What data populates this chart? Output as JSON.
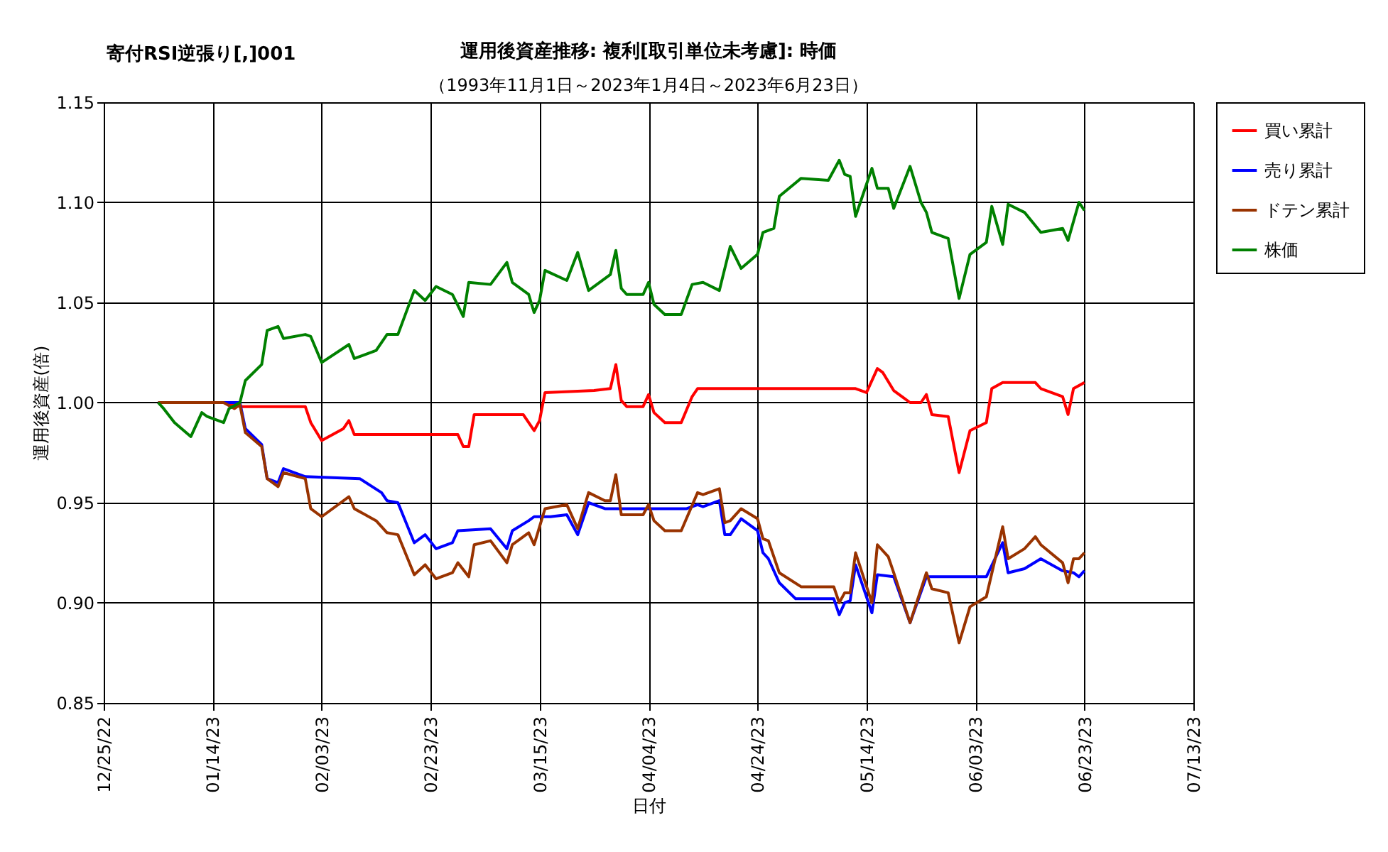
{
  "chart_data": {
    "type": "line",
    "title": "運用後資産推移: 複利[取引単位未考慮]: 時価",
    "subtitle": "（1993年11月1日～2023年1月4日～2023年6月23日）",
    "annotations": [
      "寄付RSI逆張り[,]001"
    ],
    "xlabel": "日付",
    "ylabel": "運用後資産(倍)",
    "xlim": [
      "2022-12-25",
      "2023-07-13"
    ],
    "xticks": [
      {
        "value": "2022-12-25",
        "label": "12/25/22"
      },
      {
        "value": "2023-01-14",
        "label": "01/14/23"
      },
      {
        "value": "2023-02-03",
        "label": "02/03/23"
      },
      {
        "value": "2023-02-23",
        "label": "02/23/23"
      },
      {
        "value": "2023-03-15",
        "label": "03/15/23"
      },
      {
        "value": "2023-04-04",
        "label": "04/04/23"
      },
      {
        "value": "2023-04-24",
        "label": "04/24/23"
      },
      {
        "value": "2023-05-14",
        "label": "05/14/23"
      },
      {
        "value": "2023-06-03",
        "label": "06/03/23"
      },
      {
        "value": "2023-06-23",
        "label": "06/23/23"
      },
      {
        "value": "2023-07-13",
        "label": "07/13/23"
      }
    ],
    "ylim": [
      0.85,
      1.15
    ],
    "yticks": [
      0.85,
      {
        "value": 0.9,
        "label": "0.90"
      },
      0.95,
      {
        "value": 1.0,
        "label": "1.00"
      },
      1.05,
      {
        "value": 1.1,
        "label": "1.10"
      },
      1.15
    ],
    "grid": true,
    "legend": "top right",
    "line_style": "solid",
    "series": [
      {
        "name": "買い累計",
        "color": "#ff0000",
        "x": [
          "2023-01-04",
          "2023-01-16",
          "2023-01-19",
          "2023-01-31",
          "2023-02-01",
          "2023-02-03",
          "2023-02-07",
          "2023-02-08",
          "2023-02-09",
          "2023-02-28",
          "2023-03-01",
          "2023-03-02",
          "2023-03-03",
          "2023-03-12",
          "2023-03-14",
          "2023-03-15",
          "2023-03-16",
          "2023-03-25",
          "2023-03-28",
          "2023-03-29",
          "2023-03-30",
          "2023-03-31",
          "2023-04-03",
          "2023-04-04",
          "2023-04-05",
          "2023-04-07",
          "2023-04-10",
          "2023-04-12",
          "2023-04-13",
          "2023-05-12",
          "2023-05-14",
          "2023-05-16",
          "2023-05-17",
          "2023-05-19",
          "2023-05-22",
          "2023-05-24",
          "2023-05-25",
          "2023-05-26",
          "2023-05-29",
          "2023-05-31",
          "2023-06-02",
          "2023-06-05",
          "2023-06-06",
          "2023-06-08",
          "2023-06-14",
          "2023-06-15",
          "2023-06-19",
          "2023-06-20",
          "2023-06-21",
          "2023-06-23"
        ],
        "values": [
          1.0,
          1.0,
          0.998,
          0.998,
          0.99,
          0.981,
          0.987,
          0.991,
          0.984,
          0.984,
          0.978,
          0.978,
          0.994,
          0.994,
          0.986,
          0.991,
          1.005,
          1.006,
          1.007,
          1.019,
          1.001,
          0.998,
          0.998,
          1.004,
          0.995,
          0.99,
          0.99,
          1.003,
          1.007,
          1.007,
          1.005,
          1.017,
          1.015,
          1.006,
          1.0,
          1.0,
          1.004,
          0.994,
          0.993,
          0.965,
          0.986,
          0.99,
          1.007,
          1.01,
          1.01,
          1.007,
          1.003,
          0.994,
          1.007,
          1.01
        ]
      },
      {
        "name": "売り累計",
        "color": "#0000ff",
        "x": [
          "2023-01-04",
          "2023-01-16",
          "2023-01-19",
          "2023-01-20",
          "2023-01-23",
          "2023-01-24",
          "2023-01-26",
          "2023-01-27",
          "2023-01-31",
          "2023-02-10",
          "2023-02-14",
          "2023-02-15",
          "2023-02-17",
          "2023-02-20",
          "2023-02-22",
          "2023-02-24",
          "2023-02-27",
          "2023-02-28",
          "2023-03-06",
          "2023-03-09",
          "2023-03-10",
          "2023-03-13",
          "2023-03-14",
          "2023-03-17",
          "2023-03-20",
          "2023-03-22",
          "2023-03-24",
          "2023-03-27",
          "2023-04-11",
          "2023-04-13",
          "2023-04-14",
          "2023-04-17",
          "2023-04-18",
          "2023-04-19",
          "2023-04-21",
          "2023-04-24",
          "2023-04-25",
          "2023-04-26",
          "2023-04-28",
          "2023-05-01",
          "2023-05-08",
          "2023-05-09",
          "2023-05-10",
          "2023-05-11",
          "2023-05-12",
          "2023-05-15",
          "2023-05-16",
          "2023-05-19",
          "2023-05-22",
          "2023-05-25",
          "2023-06-05",
          "2023-06-08",
          "2023-06-09",
          "2023-06-12",
          "2023-06-15",
          "2023-06-19",
          "2023-06-21",
          "2023-06-22",
          "2023-06-23"
        ],
        "values": [
          1.0,
          1.0,
          1.0,
          0.987,
          0.979,
          0.962,
          0.96,
          0.967,
          0.963,
          0.962,
          0.955,
          0.951,
          0.95,
          0.93,
          0.934,
          0.927,
          0.93,
          0.936,
          0.937,
          0.927,
          0.936,
          0.941,
          0.943,
          0.943,
          0.944,
          0.934,
          0.95,
          0.947,
          0.947,
          0.949,
          0.948,
          0.951,
          0.934,
          0.934,
          0.942,
          0.936,
          0.925,
          0.922,
          0.91,
          0.902,
          0.902,
          0.894,
          0.9,
          0.901,
          0.919,
          0.895,
          0.914,
          0.913,
          0.89,
          0.913,
          0.913,
          0.93,
          0.915,
          0.917,
          0.922,
          0.916,
          0.915,
          0.913,
          0.916
        ]
      },
      {
        "name": "ドテン累計",
        "color": "#993300",
        "x": [
          "2023-01-04",
          "2023-01-16",
          "2023-01-18",
          "2023-01-19",
          "2023-01-20",
          "2023-01-23",
          "2023-01-24",
          "2023-01-26",
          "2023-01-27",
          "2023-01-31",
          "2023-02-01",
          "2023-02-03",
          "2023-02-08",
          "2023-02-09",
          "2023-02-13",
          "2023-02-15",
          "2023-02-17",
          "2023-02-20",
          "2023-02-22",
          "2023-02-24",
          "2023-02-27",
          "2023-02-28",
          "2023-03-02",
          "2023-03-03",
          "2023-03-06",
          "2023-03-09",
          "2023-03-10",
          "2023-03-13",
          "2023-03-14",
          "2023-03-16",
          "2023-03-20",
          "2023-03-22",
          "2023-03-24",
          "2023-03-27",
          "2023-03-28",
          "2023-03-29",
          "2023-03-30",
          "2023-04-03",
          "2023-04-04",
          "2023-04-05",
          "2023-04-07",
          "2023-04-10",
          "2023-04-13",
          "2023-04-14",
          "2023-04-17",
          "2023-04-18",
          "2023-04-19",
          "2023-04-21",
          "2023-04-24",
          "2023-04-25",
          "2023-04-26",
          "2023-04-28",
          "2023-05-02",
          "2023-05-08",
          "2023-05-09",
          "2023-05-10",
          "2023-05-11",
          "2023-05-12",
          "2023-05-15",
          "2023-05-16",
          "2023-05-18",
          "2023-05-19",
          "2023-05-22",
          "2023-05-25",
          "2023-05-26",
          "2023-05-29",
          "2023-05-31",
          "2023-06-02",
          "2023-06-05",
          "2023-06-08",
          "2023-06-09",
          "2023-06-12",
          "2023-06-14",
          "2023-06-15",
          "2023-06-19",
          "2023-06-20",
          "2023-06-21",
          "2023-06-22",
          "2023-06-23"
        ],
        "values": [
          1.0,
          1.0,
          0.997,
          0.999,
          0.985,
          0.978,
          0.962,
          0.958,
          0.965,
          0.962,
          0.947,
          0.943,
          0.953,
          0.947,
          0.941,
          0.935,
          0.934,
          0.914,
          0.919,
          0.912,
          0.915,
          0.92,
          0.913,
          0.929,
          0.931,
          0.92,
          0.929,
          0.935,
          0.929,
          0.947,
          0.949,
          0.937,
          0.955,
          0.951,
          0.951,
          0.964,
          0.944,
          0.944,
          0.949,
          0.941,
          0.936,
          0.936,
          0.955,
          0.954,
          0.957,
          0.94,
          0.941,
          0.947,
          0.942,
          0.932,
          0.931,
          0.915,
          0.908,
          0.908,
          0.9,
          0.905,
          0.905,
          0.925,
          0.9,
          0.929,
          0.923,
          0.915,
          0.89,
          0.915,
          0.907,
          0.905,
          0.88,
          0.898,
          0.903,
          0.938,
          0.922,
          0.927,
          0.933,
          0.929,
          0.92,
          0.91,
          0.922,
          0.922,
          0.925
        ]
      },
      {
        "name": "株価",
        "color": "#008000",
        "x": [
          "2023-01-04",
          "2023-01-05",
          "2023-01-07",
          "2023-01-10",
          "2023-01-12",
          "2023-01-13",
          "2023-01-16",
          "2023-01-17",
          "2023-01-19",
          "2023-01-20",
          "2023-01-23",
          "2023-01-24",
          "2023-01-26",
          "2023-01-27",
          "2023-01-31",
          "2023-02-01",
          "2023-02-03",
          "2023-02-08",
          "2023-02-09",
          "2023-02-13",
          "2023-02-15",
          "2023-02-17",
          "2023-02-20",
          "2023-02-22",
          "2023-02-24",
          "2023-02-27",
          "2023-03-01",
          "2023-03-02",
          "2023-03-06",
          "2023-03-09",
          "2023-03-10",
          "2023-03-13",
          "2023-03-14",
          "2023-03-15",
          "2023-03-16",
          "2023-03-20",
          "2023-03-22",
          "2023-03-24",
          "2023-03-28",
          "2023-03-29",
          "2023-03-30",
          "2023-03-31",
          "2023-04-03",
          "2023-04-04",
          "2023-04-05",
          "2023-04-07",
          "2023-04-10",
          "2023-04-12",
          "2023-04-14",
          "2023-04-17",
          "2023-04-19",
          "2023-04-21",
          "2023-04-24",
          "2023-04-25",
          "2023-04-27",
          "2023-04-28",
          "2023-05-02",
          "2023-05-07",
          "2023-05-09",
          "2023-05-10",
          "2023-05-11",
          "2023-05-12",
          "2023-05-15",
          "2023-05-16",
          "2023-05-18",
          "2023-05-19",
          "2023-05-22",
          "2023-05-24",
          "2023-05-25",
          "2023-05-26",
          "2023-05-29",
          "2023-05-31",
          "2023-06-02",
          "2023-06-05",
          "2023-06-06",
          "2023-06-08",
          "2023-06-09",
          "2023-06-12",
          "2023-06-15",
          "2023-06-19",
          "2023-06-20",
          "2023-06-22",
          "2023-06-23"
        ],
        "values": [
          1.0,
          0.997,
          0.99,
          0.983,
          0.995,
          0.993,
          0.99,
          0.997,
          1.0,
          1.011,
          1.019,
          1.036,
          1.038,
          1.032,
          1.034,
          1.033,
          1.02,
          1.029,
          1.022,
          1.026,
          1.034,
          1.034,
          1.056,
          1.051,
          1.058,
          1.054,
          1.043,
          1.06,
          1.059,
          1.07,
          1.06,
          1.054,
          1.045,
          1.051,
          1.066,
          1.061,
          1.075,
          1.056,
          1.064,
          1.076,
          1.057,
          1.054,
          1.054,
          1.06,
          1.049,
          1.044,
          1.044,
          1.059,
          1.06,
          1.056,
          1.078,
          1.067,
          1.074,
          1.085,
          1.087,
          1.103,
          1.112,
          1.111,
          1.121,
          1.114,
          1.113,
          1.093,
          1.117,
          1.107,
          1.107,
          1.097,
          1.118,
          1.1,
          1.095,
          1.085,
          1.082,
          1.052,
          1.074,
          1.08,
          1.098,
          1.079,
          1.099,
          1.095,
          1.085,
          1.087,
          1.081,
          1.1,
          1.096
        ]
      }
    ]
  }
}
